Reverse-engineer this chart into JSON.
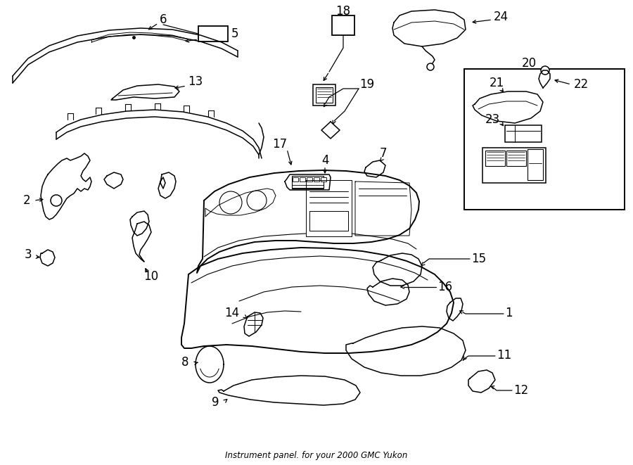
{
  "title": "Instrument panel. for your 2000 GMC Yukon",
  "bg_color": "#ffffff",
  "line_color": "#000000",
  "fig_width": 9.0,
  "fig_height": 6.61,
  "dpi": 100
}
